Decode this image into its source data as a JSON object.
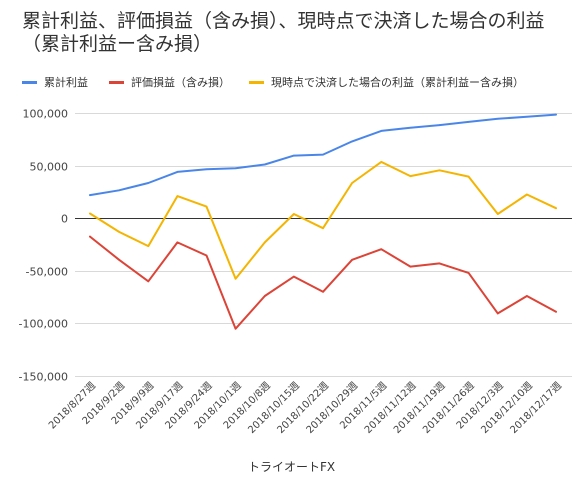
{
  "chart_data": {
    "type": "line",
    "title": "累計利益、評価損益（含み損）、現時点で決済した場合の利益（累計利益ー含み損）",
    "xlabel": "トライオートFX",
    "ylabel": "",
    "ylim": [
      -150000,
      100000
    ],
    "yticks": [
      {
        "value": 100000,
        "label": "100,000"
      },
      {
        "value": 50000,
        "label": "50,000"
      },
      {
        "value": 0,
        "label": "0"
      },
      {
        "value": -50000,
        "label": "-50,000"
      },
      {
        "value": -100000,
        "label": "-100,000"
      },
      {
        "value": -150000,
        "label": "-150,000"
      }
    ],
    "grid": true,
    "legend_position": "top-left",
    "categories": [
      "2018/8/27週",
      "2018/9/2週",
      "2018/9/9週",
      "2018/9/17週",
      "2018/9/24週",
      "2018/10/1週",
      "2018/10/8週",
      "2018/10/15週",
      "2018/10/22週",
      "2018/10/29週",
      "2018/11/5週",
      "2018/11/12週",
      "2018/11/19週",
      "2018/11/26週",
      "2018/12/3週",
      "2018/12/10週",
      "2018/12/17週"
    ],
    "series": [
      {
        "name": "累計利益",
        "color": "#4a86e8",
        "values": [
          22000,
          26500,
          33500,
          44000,
          46500,
          47500,
          51000,
          59500,
          60500,
          73000,
          83000,
          86000,
          88500,
          91500,
          94500,
          96500,
          98500
        ]
      },
      {
        "name": "評価損益（含み損）",
        "color": "#db4437",
        "values": [
          -17500,
          -39500,
          -60000,
          -23000,
          -35500,
          -105000,
          -74000,
          -55500,
          -70000,
          -39500,
          -29500,
          -46000,
          -43000,
          -52000,
          -90500,
          -74000,
          -89000
        ]
      },
      {
        "name": "現時点で決済した場合の利益（累計利益ー含み損）",
        "color": "#f4b400",
        "values": [
          4500,
          -13000,
          -26500,
          21000,
          11000,
          -57500,
          -23000,
          4000,
          -9500,
          33500,
          53500,
          40000,
          45500,
          39500,
          4000,
          22500,
          9500
        ]
      }
    ]
  }
}
